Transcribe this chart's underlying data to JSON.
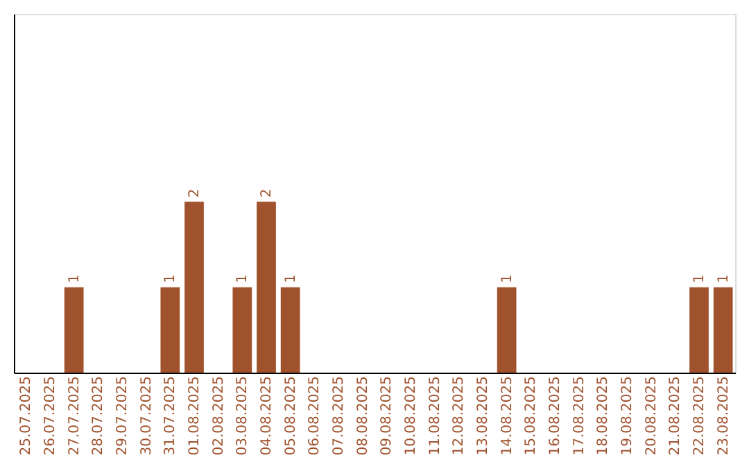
{
  "chart_data": {
    "type": "bar",
    "categories": [
      "25.07.2025",
      "26.07.2025",
      "27.07.2025",
      "28.07.2025",
      "29.07.2025",
      "30.07.2025",
      "31.07.2025",
      "01.08.2025",
      "02.08.2025",
      "03.08.2025",
      "04.08.2025",
      "05.08.2025",
      "06.08.2025",
      "07.08.2025",
      "08.08.2025",
      "09.08.2025",
      "10.08.2025",
      "11.08.2025",
      "12.08.2025",
      "13.08.2025",
      "14.08.2025",
      "15.08.2025",
      "16.08.2025",
      "17.08.2025",
      "18.08.2025",
      "19.08.2025",
      "20.08.2025",
      "21.08.2025",
      "22.08.2025",
      "23.08.2025"
    ],
    "values": [
      0,
      0,
      1,
      0,
      0,
      0,
      1,
      2,
      0,
      1,
      2,
      1,
      0,
      0,
      0,
      0,
      0,
      0,
      0,
      0,
      1,
      0,
      0,
      0,
      0,
      0,
      0,
      0,
      1,
      1
    ],
    "color": "#a0522d",
    "ylim": [
      0,
      4.2
    ],
    "value_labels": [
      null,
      null,
      "1",
      null,
      null,
      null,
      "1",
      "2",
      null,
      "1",
      "2",
      "1",
      null,
      null,
      null,
      null,
      null,
      null,
      null,
      null,
      "1",
      null,
      null,
      null,
      null,
      null,
      null,
      null,
      "1",
      "1"
    ],
    "tick_labels": "x",
    "grid": false
  }
}
